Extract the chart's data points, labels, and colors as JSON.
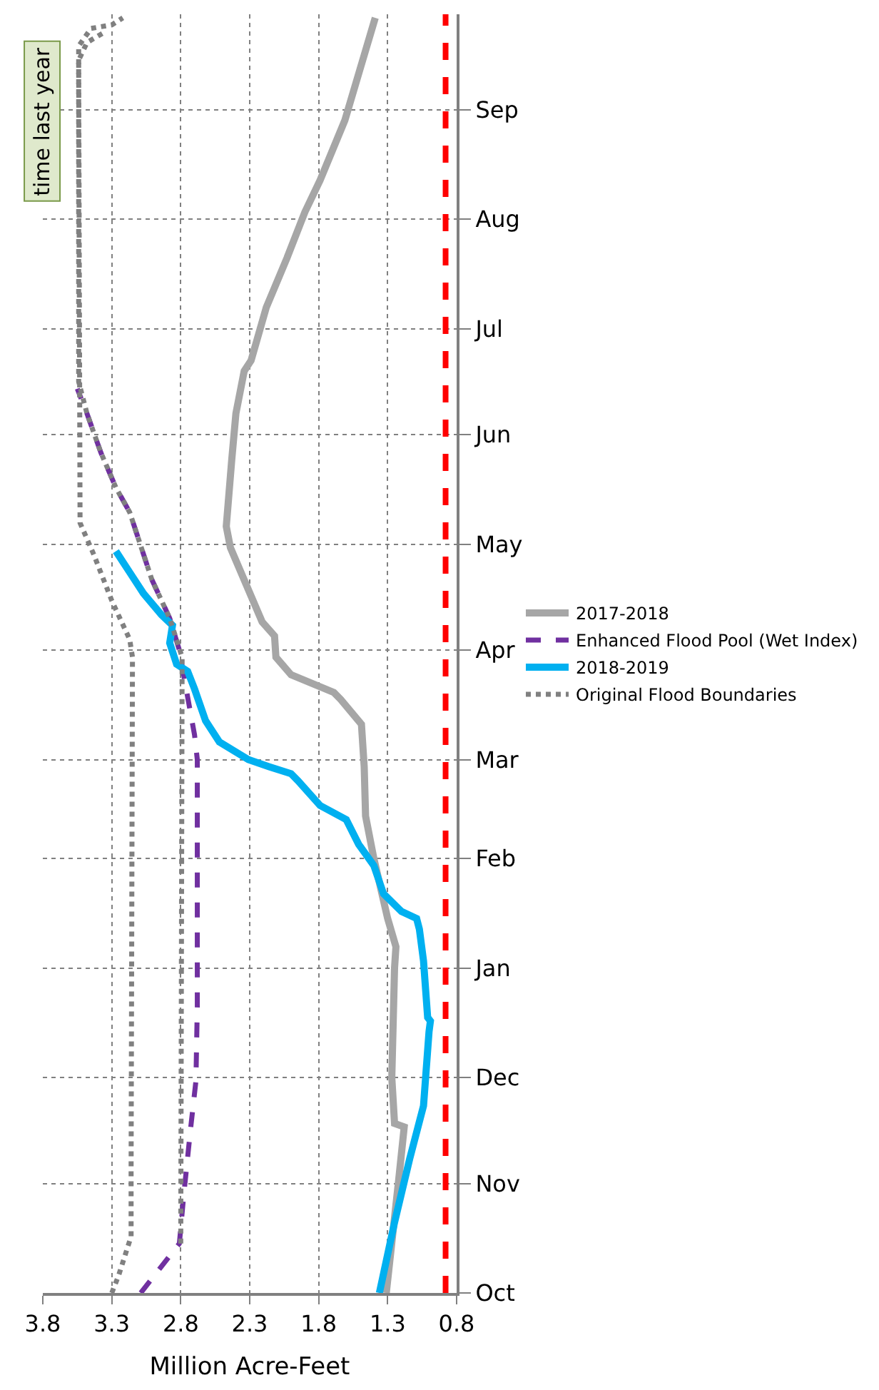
{
  "chart_data": {
    "type": "line",
    "orientation": "horizontal",
    "xlabel": "Million Acre-Feet",
    "annotations": [
      "time last year"
    ],
    "ylim": [
      "2018-10-01",
      "2019-09-28"
    ],
    "yticks": [
      {
        "value": "2018-10-01",
        "label": "Oct"
      },
      {
        "value": "2018-11-01",
        "label": "Nov"
      },
      {
        "value": "2018-12-01",
        "label": "Dec"
      },
      {
        "value": "2019-01-01",
        "label": "Jan"
      },
      {
        "value": "2019-02-01",
        "label": "Feb"
      },
      {
        "value": "2019-03-01",
        "label": "Mar"
      },
      {
        "value": "2019-04-01",
        "label": "Apr"
      },
      {
        "value": "2019-05-01",
        "label": "May"
      },
      {
        "value": "2019-06-01",
        "label": "Jun"
      },
      {
        "value": "2019-07-01",
        "label": "Jul"
      },
      {
        "value": "2019-08-01",
        "label": "Aug"
      },
      {
        "value": "2019-09-01",
        "label": "Sep"
      }
    ],
    "xlim": [
      3.8,
      0.8
    ],
    "xticks": [
      3.8,
      3.3,
      2.8,
      2.3,
      1.8,
      1.3,
      0.8
    ],
    "grid": true,
    "legend": "right",
    "marker": "none",
    "ref_lines": [
      {
        "axis": "x",
        "value": 0.88,
        "color": "#ff0000",
        "line_style": "dashed"
      }
    ],
    "series": [
      {
        "name": "2017-2018",
        "color": "#a6a6a6",
        "line_style": "solid",
        "x": [
          "2018-10-01",
          "2018-11-02",
          "2018-11-17",
          "2018-11-18",
          "2018-12-01",
          "2019-01-01",
          "2019-01-07",
          "2019-01-15",
          "2019-02-01",
          "2019-02-13",
          "2019-02-27",
          "2019-03-11",
          "2019-03-18",
          "2019-03-20",
          "2019-03-25",
          "2019-03-30",
          "2019-04-05",
          "2019-04-09",
          "2019-04-30",
          "2019-05-06",
          "2019-05-25",
          "2019-06-07",
          "2019-06-19",
          "2019-06-22",
          "2019-07-07",
          "2019-07-21",
          "2019-08-03",
          "2019-08-12",
          "2019-08-29",
          "2019-09-27"
        ],
        "values": [
          1.31,
          1.22,
          1.18,
          1.25,
          1.27,
          1.25,
          1.24,
          1.3,
          1.4,
          1.46,
          1.47,
          1.49,
          1.64,
          1.69,
          2.0,
          2.11,
          2.12,
          2.21,
          2.44,
          2.47,
          2.43,
          2.4,
          2.34,
          2.29,
          2.18,
          2.03,
          1.9,
          1.79,
          1.61,
          1.39
        ]
      },
      {
        "name": "Enhanced Flood Pool (Wet Index)",
        "color": "#7030a0",
        "line_style": "dashed",
        "x": [
          "2018-10-01",
          "2018-10-15",
          "2018-10-28",
          "2018-11-16",
          "2018-11-30",
          "2018-12-21",
          "2019-03-01",
          "2019-03-08",
          "2019-03-23",
          "2019-04-01",
          "2019-04-10",
          "2019-04-21",
          "2019-05-10",
          "2019-05-17",
          "2019-05-27",
          "2019-06-07",
          "2019-06-14"
        ],
        "values": [
          3.09,
          2.81,
          2.78,
          2.73,
          2.69,
          2.68,
          2.68,
          2.7,
          2.77,
          2.81,
          2.88,
          3.01,
          3.17,
          3.27,
          3.38,
          3.48,
          3.55
        ]
      },
      {
        "name": "2018-2019",
        "color": "#00b0f0",
        "line_style": "solid",
        "x": [
          "2018-10-01",
          "2018-10-21",
          "2018-11-08",
          "2018-11-23",
          "2018-12-14",
          "2018-12-17",
          "2018-12-18",
          "2019-01-03",
          "2019-01-12",
          "2019-01-15",
          "2019-01-17",
          "2019-01-22",
          "2019-01-30",
          "2019-02-05",
          "2019-02-12",
          "2019-02-16",
          "2019-02-23",
          "2019-02-25",
          "2019-02-27",
          "2019-03-01",
          "2019-03-06",
          "2019-03-12",
          "2019-03-21",
          "2019-03-26",
          "2019-03-28",
          "2019-04-03",
          "2019-04-08",
          "2019-04-11",
          "2019-04-17",
          "2019-04-23",
          "2019-04-29"
        ],
        "values": [
          1.36,
          1.25,
          1.14,
          1.04,
          1.0,
          0.99,
          1.01,
          1.04,
          1.07,
          1.09,
          1.2,
          1.33,
          1.4,
          1.51,
          1.6,
          1.79,
          1.95,
          2.0,
          2.16,
          2.31,
          2.52,
          2.62,
          2.7,
          2.75,
          2.83,
          2.88,
          2.86,
          2.94,
          3.07,
          3.17,
          3.27
        ]
      },
      {
        "name": "Original Flood Boundaries",
        "color": "#808080",
        "line_style": "dotted",
        "x": [
          "2018-10-01",
          "2018-10-06",
          "2018-10-17",
          "2018-11-04",
          "2019-03-30",
          "2019-04-04",
          "2019-04-15",
          "2019-04-28",
          "2019-05-07",
          "2019-09-15",
          "2019-09-20",
          "2019-09-23"
        ],
        "values": [
          3.3,
          3.25,
          3.16,
          3.16,
          3.15,
          3.17,
          3.3,
          3.43,
          3.53,
          3.54,
          3.48,
          3.35
        ]
      },
      {
        "color": "#808080",
        "line_style": "dotted",
        "x": [
          "2018-10-15",
          "2019-03-30",
          "2019-04-10",
          "2019-04-21",
          "2019-05-10",
          "2019-05-17",
          "2019-05-27",
          "2019-06-07",
          "2019-06-16",
          "2019-09-19",
          "2019-09-24",
          "2019-09-25",
          "2019-09-27"
        ],
        "values": [
          2.8,
          2.79,
          2.88,
          3.01,
          3.17,
          3.27,
          3.38,
          3.48,
          3.54,
          3.54,
          3.45,
          3.3,
          3.22
        ]
      }
    ]
  }
}
